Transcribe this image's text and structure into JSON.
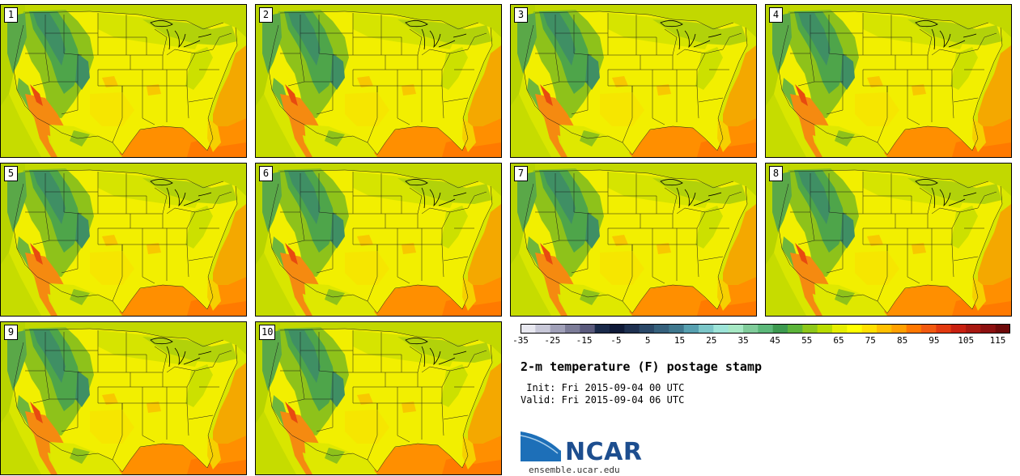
{
  "panels": [
    {
      "label": "1"
    },
    {
      "label": "2"
    },
    {
      "label": "3"
    },
    {
      "label": "4"
    },
    {
      "label": "5"
    },
    {
      "label": "6"
    },
    {
      "label": "7"
    },
    {
      "label": "8"
    },
    {
      "label": "9"
    },
    {
      "label": "10"
    }
  ],
  "map_colors": {
    "ocean_warm": "#f4a500",
    "ocean_hot": "#ff8800",
    "land_base": "#f2ef00",
    "land_mid": "#cfe000",
    "land_cool": "#8ec21a",
    "mountain": "#4ea54a",
    "mountain_dark": "#3f8f64",
    "desert_hot": "#f58a10",
    "desert_very_hot": "#e84a10",
    "border": "#000000"
  },
  "colorbar": {
    "colors": [
      "#e8e8f0",
      "#c8c8d8",
      "#a0a0b8",
      "#7c7c98",
      "#5a5a7c",
      "#1a2a4a",
      "#0f1a38",
      "#1e3050",
      "#2a4868",
      "#35607c",
      "#3f788e",
      "#57a0b0",
      "#7bc6c8",
      "#9de4d8",
      "#a6e8c4",
      "#80cc9a",
      "#5cb87a",
      "#3d9a50",
      "#5cb43a",
      "#8ec81a",
      "#b8dc00",
      "#e6ee00",
      "#ffff00",
      "#ffe000",
      "#ffc000",
      "#ffa000",
      "#ff7800",
      "#f25a10",
      "#e23a10",
      "#c82010",
      "#a81810",
      "#8c1010",
      "#6e0a0a"
    ],
    "ticks": [
      "-35",
      "-25",
      "-15",
      "-5",
      "5",
      "15",
      "25",
      "35",
      "45",
      "55",
      "65",
      "75",
      "85",
      "95",
      "105",
      "115"
    ]
  },
  "title": "2-m temperature (F) postage stamp",
  "init_line": " Init: Fri 2015-09-04 00 UTC",
  "valid_line": "Valid: Fri 2015-09-04 06 UTC",
  "logo_text": "NCAR",
  "website": "ensemble.ucar.edu"
}
